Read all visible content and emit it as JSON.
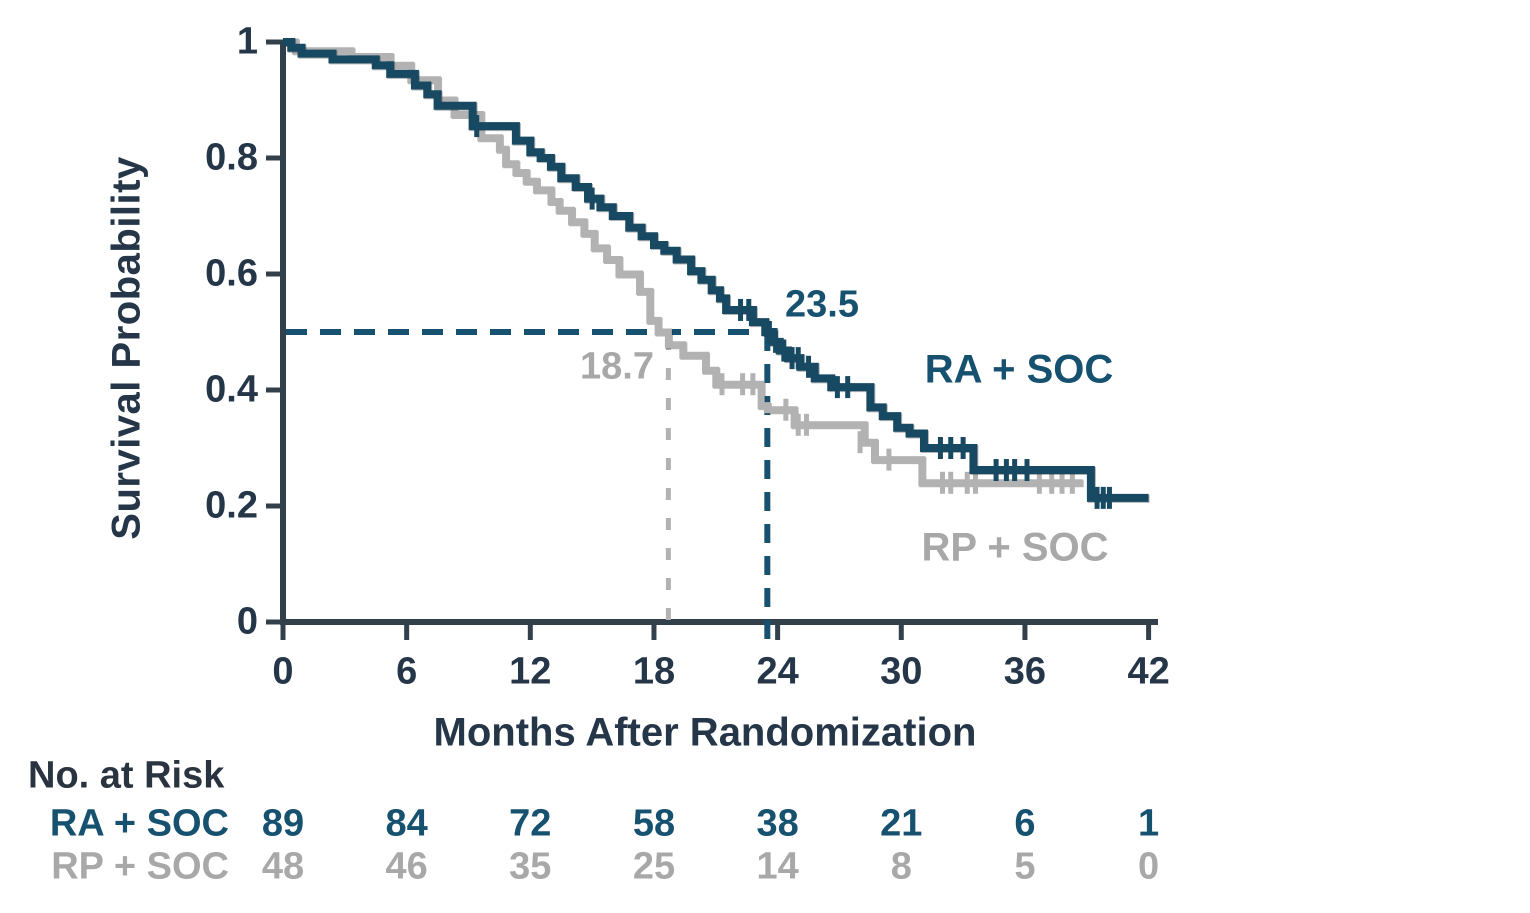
{
  "chart_data": {
    "type": "line",
    "subtype": "kaplan-meier-step",
    "title": "",
    "xlabel": "Months After Randomization",
    "ylabel": "Survival Probability",
    "xlim": [
      0,
      42
    ],
    "ylim": [
      0,
      1
    ],
    "grid": false,
    "x_ticks": [
      0,
      6,
      12,
      18,
      24,
      30,
      36,
      42
    ],
    "x_tick_labels": [
      "0",
      "6",
      "12",
      "18",
      "24",
      "30",
      "36",
      "42"
    ],
    "y_ticks": [
      1,
      0.8,
      0.6,
      0.4,
      0.2,
      0
    ],
    "y_tick_labels": [
      "1",
      "0.8",
      "0.6",
      "0.4",
      "0.2",
      "0"
    ],
    "reference_level": 0.5,
    "series": [
      {
        "name": "RA + SOC",
        "color": "#174a62",
        "text_color": "#175170",
        "median_months": 23.5,
        "median_label": "23.5",
        "end_month": 42,
        "steps": [
          [
            0,
            1.0
          ],
          [
            0.4,
            0.99
          ],
          [
            0.9,
            0.98
          ],
          [
            2.4,
            0.97
          ],
          [
            4.5,
            0.96
          ],
          [
            5.2,
            0.945
          ],
          [
            6.4,
            0.925
          ],
          [
            7.0,
            0.91
          ],
          [
            7.5,
            0.89
          ],
          [
            9.2,
            0.855
          ],
          [
            11.3,
            0.83
          ],
          [
            12.0,
            0.81
          ],
          [
            12.5,
            0.8
          ],
          [
            13.0,
            0.785
          ],
          [
            13.5,
            0.765
          ],
          [
            14.2,
            0.75
          ],
          [
            14.8,
            0.73
          ],
          [
            15.4,
            0.715
          ],
          [
            16.0,
            0.7
          ],
          [
            16.8,
            0.68
          ],
          [
            17.4,
            0.665
          ],
          [
            18.0,
            0.65
          ],
          [
            18.5,
            0.64
          ],
          [
            19.1,
            0.625
          ],
          [
            19.8,
            0.605
          ],
          [
            20.3,
            0.59
          ],
          [
            20.8,
            0.572
          ],
          [
            21.2,
            0.558
          ],
          [
            21.5,
            0.538
          ],
          [
            22.8,
            0.517
          ],
          [
            23.4,
            0.5
          ],
          [
            23.8,
            0.483
          ],
          [
            24.1,
            0.468
          ],
          [
            24.5,
            0.455
          ],
          [
            25.1,
            0.44
          ],
          [
            25.8,
            0.42
          ],
          [
            26.6,
            0.405
          ],
          [
            28.5,
            0.37
          ],
          [
            29.1,
            0.355
          ],
          [
            29.8,
            0.335
          ],
          [
            30.4,
            0.325
          ],
          [
            31.1,
            0.3
          ],
          [
            33.5,
            0.262
          ],
          [
            39.2,
            0.214
          ]
        ],
        "censor_marks": [
          [
            9.4,
            0.855
          ],
          [
            15.0,
            0.73
          ],
          [
            22.2,
            0.538
          ],
          [
            22.6,
            0.538
          ],
          [
            23.6,
            0.5
          ],
          [
            23.9,
            0.483
          ],
          [
            24.3,
            0.468
          ],
          [
            24.7,
            0.455
          ],
          [
            25.0,
            0.455
          ],
          [
            25.5,
            0.44
          ],
          [
            26.9,
            0.405
          ],
          [
            27.4,
            0.405
          ],
          [
            31.9,
            0.3
          ],
          [
            32.4,
            0.3
          ],
          [
            33.0,
            0.3
          ],
          [
            34.6,
            0.262
          ],
          [
            35.1,
            0.262
          ],
          [
            35.5,
            0.262
          ],
          [
            36.1,
            0.262
          ],
          [
            39.5,
            0.214
          ],
          [
            39.8,
            0.214
          ],
          [
            40.1,
            0.214
          ]
        ]
      },
      {
        "name": "RP + SOC",
        "color": "#b2b2b2",
        "text_color": "#a8a8a8",
        "median_months": 18.7,
        "median_label": "18.7",
        "end_month": 38.8,
        "steps": [
          [
            0,
            1.0
          ],
          [
            0.6,
            0.985
          ],
          [
            3.3,
            0.975
          ],
          [
            5.2,
            0.96
          ],
          [
            6.2,
            0.935
          ],
          [
            7.5,
            0.9
          ],
          [
            8.3,
            0.875
          ],
          [
            9.6,
            0.835
          ],
          [
            10.5,
            0.815
          ],
          [
            10.8,
            0.79
          ],
          [
            11.3,
            0.775
          ],
          [
            11.8,
            0.76
          ],
          [
            12.3,
            0.745
          ],
          [
            13.0,
            0.725
          ],
          [
            13.4,
            0.71
          ],
          [
            14.0,
            0.69
          ],
          [
            14.6,
            0.67
          ],
          [
            15.1,
            0.645
          ],
          [
            15.7,
            0.625
          ],
          [
            16.3,
            0.6
          ],
          [
            17.3,
            0.57
          ],
          [
            17.8,
            0.52
          ],
          [
            18.2,
            0.5
          ],
          [
            18.7,
            0.478
          ],
          [
            19.4,
            0.46
          ],
          [
            20.5,
            0.434
          ],
          [
            21.0,
            0.41
          ],
          [
            23.2,
            0.373
          ],
          [
            23.5,
            0.366
          ],
          [
            24.8,
            0.34
          ],
          [
            28.2,
            0.31
          ],
          [
            28.7,
            0.28
          ],
          [
            31.0,
            0.24
          ]
        ],
        "censor_marks": [
          [
            21.3,
            0.41
          ],
          [
            22.3,
            0.41
          ],
          [
            22.8,
            0.41
          ],
          [
            24.4,
            0.366
          ],
          [
            25.0,
            0.34
          ],
          [
            25.4,
            0.34
          ],
          [
            28.0,
            0.31
          ],
          [
            29.4,
            0.28
          ],
          [
            32.0,
            0.24
          ],
          [
            32.4,
            0.24
          ],
          [
            33.2,
            0.24
          ],
          [
            33.6,
            0.24
          ],
          [
            36.7,
            0.24
          ],
          [
            37.3,
            0.24
          ],
          [
            37.8,
            0.24
          ],
          [
            38.3,
            0.24
          ]
        ]
      }
    ]
  },
  "annotations": {
    "ra_median": "23.5",
    "rp_median": "18.7",
    "ra_label": "RA + SOC",
    "rp_label": "RP + SOC"
  },
  "risk_table": {
    "title": "No. at Risk",
    "columns": [
      0,
      6,
      12,
      18,
      24,
      30,
      36,
      42
    ],
    "rows": [
      {
        "label": "RA + SOC",
        "values": [
          "89",
          "84",
          "72",
          "58",
          "38",
          "21",
          "6",
          "1"
        ]
      },
      {
        "label": "RP + SOC",
        "values": [
          "48",
          "46",
          "35",
          "25",
          "14",
          "8",
          "5",
          "0"
        ]
      }
    ]
  },
  "colors": {
    "navy_text": "#175170",
    "navy_curve": "#174a62",
    "gray_curve": "#b2b2b2",
    "gray_text": "#a8a8a8",
    "axis": "#32404c",
    "tick_text": "#243648"
  }
}
